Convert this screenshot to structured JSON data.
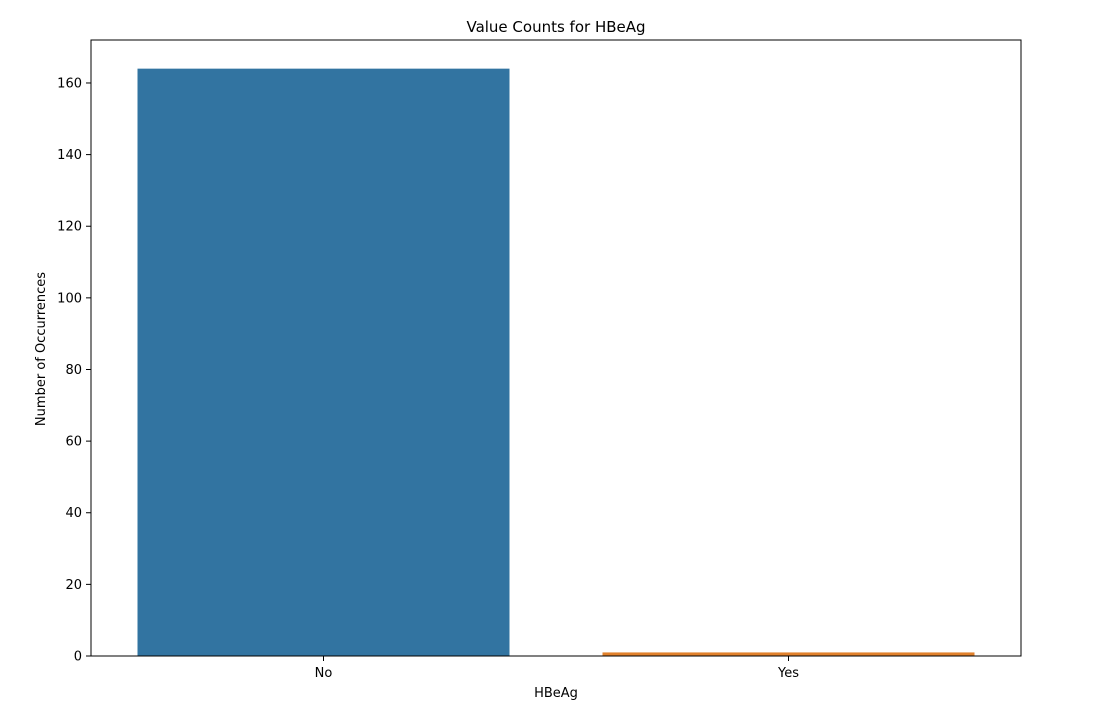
{
  "chart_data": {
    "type": "bar",
    "title": "Value Counts for HBeAg",
    "xlabel": "HBeAg",
    "ylabel": "Number of Occurrences",
    "categories": [
      "No",
      "Yes"
    ],
    "values": [
      164,
      1
    ],
    "bar_colors": [
      "#3274a1",
      "#e1812c"
    ],
    "ylim": [
      0,
      172
    ],
    "yticks": [
      0,
      20,
      40,
      60,
      80,
      100,
      120,
      140,
      160
    ],
    "grid": false,
    "legend": "none"
  }
}
